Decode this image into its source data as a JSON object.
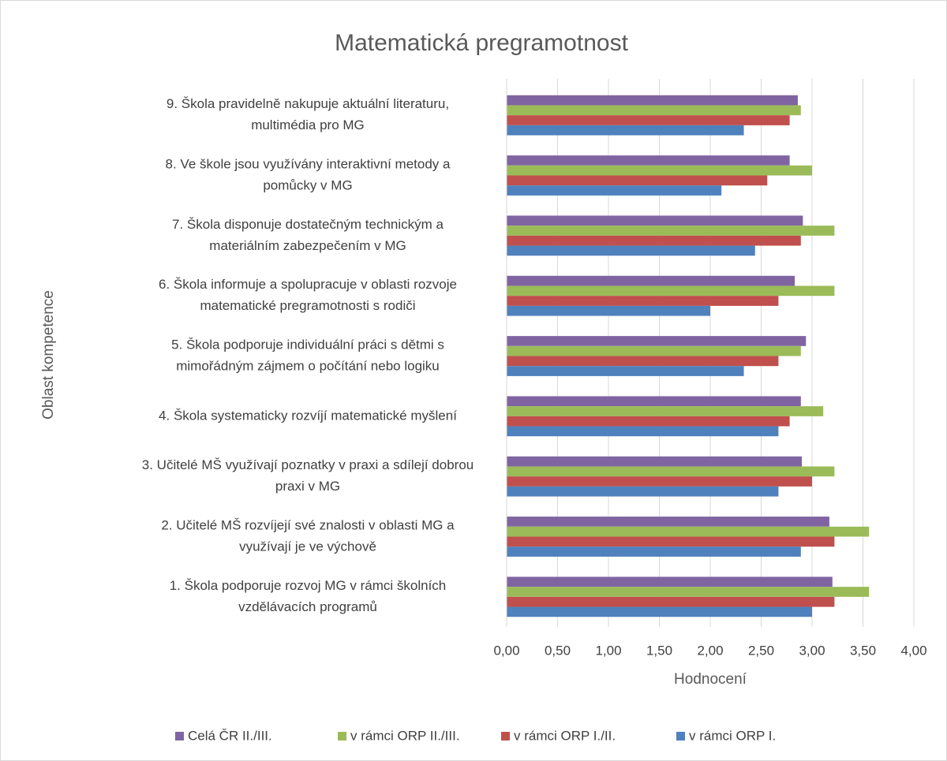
{
  "chart_data": {
    "type": "bar",
    "orientation": "horizontal",
    "title": "Matematická pregramotnost",
    "x_label": "Hodnocení",
    "y_label": "Oblast kompetence",
    "categories": [
      [
        "1. Škola podporuje rozvoj MG v rámci školních",
        "vzdělávacích programů"
      ],
      [
        "2. Učitelé MŠ rozvíjejí své znalosti v oblasti MG a",
        "využívají je ve výchově"
      ],
      [
        "3. Učitelé MŠ využívají poznatky v praxi a sdílejí dobrou",
        "praxi v MG"
      ],
      [
        "4. Škola systematicky rozvíjí matematické myšlení"
      ],
      [
        "5. Škola podporuje individuální práci s dětmi s",
        "mimořádným zájmem o počítání nebo logiku"
      ],
      [
        "6. Škola informuje a spolupracuje v oblasti rozvoje",
        "matematické pregramotnosti s rodiči"
      ],
      [
        "7. Škola disponuje dostatečným technickým a",
        "materiálním zabezpečením v MG"
      ],
      [
        "8. Ve škole jsou využívány interaktivní metody a",
        "pomůcky v MG"
      ],
      [
        "9. Škola pravidelně nakupuje aktuální literaturu,",
        "multimédia pro MG"
      ]
    ],
    "series": [
      {
        "name": "Celá ČR II./III.",
        "color": "#8064a2",
        "values": [
          3.2,
          3.17,
          2.9,
          2.89,
          2.94,
          2.83,
          2.91,
          2.78,
          2.86
        ]
      },
      {
        "name": "v rámci ORP II./III.",
        "color": "#9bbb59",
        "values": [
          3.56,
          3.56,
          3.22,
          3.11,
          2.89,
          3.22,
          3.22,
          3.0,
          2.89
        ]
      },
      {
        "name": "v rámci ORP I./II.",
        "color": "#c0504d",
        "values": [
          3.22,
          3.22,
          3.0,
          2.78,
          2.67,
          2.67,
          2.89,
          2.56,
          2.78
        ]
      },
      {
        "name": "v rámci ORP I.",
        "color": "#4f81bd",
        "values": [
          3.0,
          2.89,
          2.67,
          2.67,
          2.33,
          2.0,
          2.44,
          2.11,
          2.33
        ]
      }
    ],
    "xlim": [
      0,
      4
    ],
    "xticks": [
      {
        "value": 0,
        "label": "0,00"
      },
      {
        "value": 0.5,
        "label": "0,50"
      },
      {
        "value": 1,
        "label": "1,00"
      },
      {
        "value": 1.5,
        "label": "1,50"
      },
      {
        "value": 2,
        "label": "2,00"
      },
      {
        "value": 2.5,
        "label": "2,50"
      },
      {
        "value": 3,
        "label": "3,00"
      },
      {
        "value": 3.5,
        "label": "3,50"
      },
      {
        "value": 4,
        "label": "4,00"
      }
    ],
    "grid": true,
    "legend": "bottom"
  }
}
